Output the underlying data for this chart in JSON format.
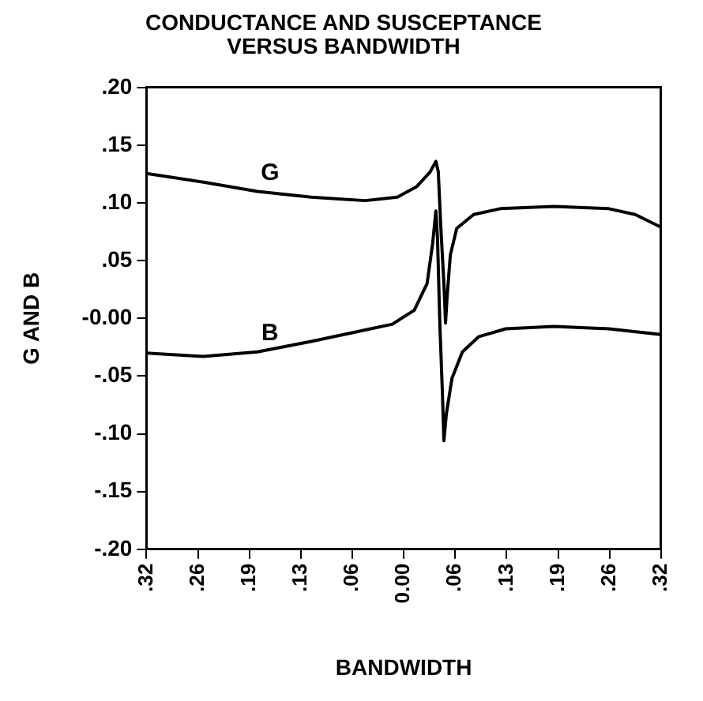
{
  "chart_data": {
    "type": "line",
    "title": "CONDUCTANCE AND SUSCEPTANCE VERSUS BANDWIDTH",
    "xlabel": "BANDWIDTH",
    "ylabel": "G AND B",
    "xlim": [
      -0.32,
      0.32
    ],
    "xticks": [
      {
        "value": -0.32,
        "label": ".32"
      },
      {
        "value": -0.256,
        "label": ".26"
      },
      {
        "value": -0.192,
        "label": ".19"
      },
      {
        "value": -0.128,
        "label": ".13"
      },
      {
        "value": -0.064,
        "label": ".06"
      },
      {
        "value": 0,
        "label": "0.00"
      },
      {
        "value": 0.064,
        "label": ".06"
      },
      {
        "value": 0.128,
        "label": ".13"
      },
      {
        "value": 0.192,
        "label": ".19"
      },
      {
        "value": 0.256,
        "label": ".26"
      },
      {
        "value": 0.32,
        "label": ".32"
      }
    ],
    "ylim": [
      -0.2,
      0.2
    ],
    "yticks": [
      {
        "value": -0.2,
        "label": "-.20"
      },
      {
        "value": -0.15,
        "label": "-.15"
      },
      {
        "value": -0.1,
        "label": "-.10"
      },
      {
        "value": -0.05,
        "label": "-.05"
      },
      {
        "value": 0,
        "label": "-0.00"
      },
      {
        "value": 0.05,
        "label": ".05"
      },
      {
        "value": 0.1,
        "label": ".10"
      },
      {
        "value": 0.15,
        "label": ".15"
      },
      {
        "value": 0.2,
        "label": ".20"
      }
    ],
    "grid": false,
    "legend": false,
    "marker": "none",
    "line_style": "solid",
    "series": [
      {
        "name": "G",
        "color": "#000000",
        "x": [
          -0.32,
          -0.249,
          -0.182,
          -0.115,
          -0.048,
          -0.008,
          0.016,
          0.033,
          0.04,
          0.043,
          0.046,
          0.05,
          0.052,
          0.054,
          0.058,
          0.066,
          0.087,
          0.12,
          0.187,
          0.255,
          0.288,
          0.32
        ],
        "values": [
          0.1255,
          0.118,
          0.11,
          0.105,
          0.102,
          0.105,
          0.114,
          0.127,
          0.136,
          0.127,
          0.081,
          0.03,
          -0.004,
          0.019,
          0.055,
          0.078,
          0.09,
          0.095,
          0.097,
          0.095,
          0.09,
          0.079
        ]
      },
      {
        "name": "B",
        "color": "#000000",
        "x": [
          -0.32,
          -0.249,
          -0.182,
          -0.115,
          -0.048,
          -0.014,
          0.013,
          0.029,
          0.036,
          0.04,
          0.042,
          0.045,
          0.048,
          0.05,
          0.053,
          0.06,
          0.073,
          0.093,
          0.127,
          0.187,
          0.255,
          0.32
        ],
        "values": [
          -0.03,
          -0.033,
          -0.029,
          -0.02,
          -0.01,
          -0.005,
          0.007,
          0.03,
          0.065,
          0.093,
          0.07,
          -0.006,
          -0.062,
          -0.106,
          -0.083,
          -0.052,
          -0.029,
          -0.016,
          -0.009,
          -0.007,
          -0.009,
          -0.014
        ]
      }
    ]
  }
}
